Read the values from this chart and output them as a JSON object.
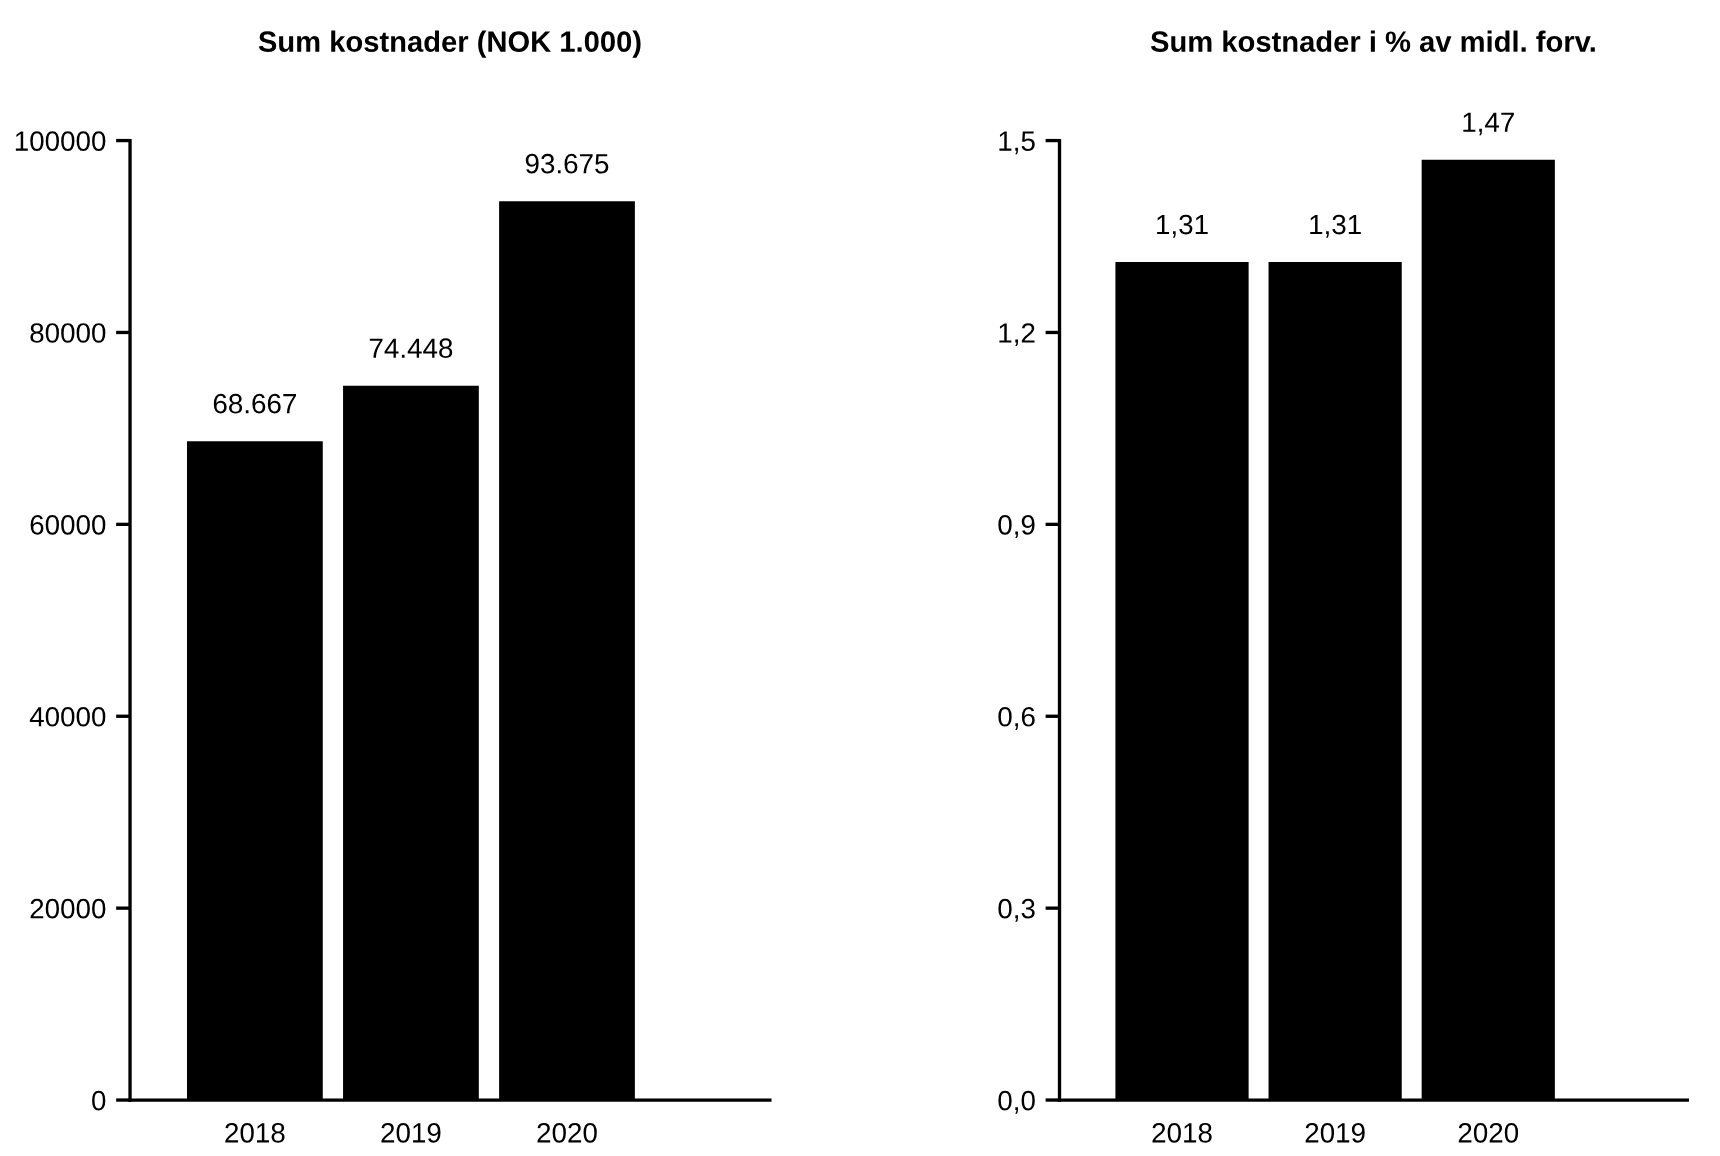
{
  "chart_data": [
    {
      "type": "bar",
      "title": "Sum kostnader (NOK 1.000)",
      "categories": [
        "2018",
        "2019",
        "2020"
      ],
      "values": [
        68667,
        74448,
        93675
      ],
      "value_labels": [
        "68.667",
        "74.448",
        "93.675"
      ],
      "color": "#000000",
      "ylim": [
        0,
        100000
      ],
      "yticks": [
        0,
        20000,
        40000,
        60000,
        80000,
        100000
      ],
      "grid": false,
      "legend": false
    },
    {
      "type": "bar",
      "title": "Sum kostnader i % av midl. forv.",
      "categories": [
        "2018",
        "2019",
        "2020"
      ],
      "values": [
        1.31,
        1.31,
        1.47
      ],
      "value_labels": [
        "1,31",
        "1,31",
        "1,47"
      ],
      "color": "#000000",
      "ylim": [
        0,
        1.5
      ],
      "yticks": [
        {
          "value": 0,
          "label": "0,0"
        },
        {
          "value": 0.3,
          "label": "0,3"
        },
        {
          "value": 0.6,
          "label": "0,6"
        },
        {
          "value": 0.9,
          "label": "0,9"
        },
        {
          "value": 1.2,
          "label": "1,2"
        },
        {
          "value": 1.5,
          "label": "1,5"
        }
      ],
      "grid": false,
      "legend": false
    }
  ]
}
